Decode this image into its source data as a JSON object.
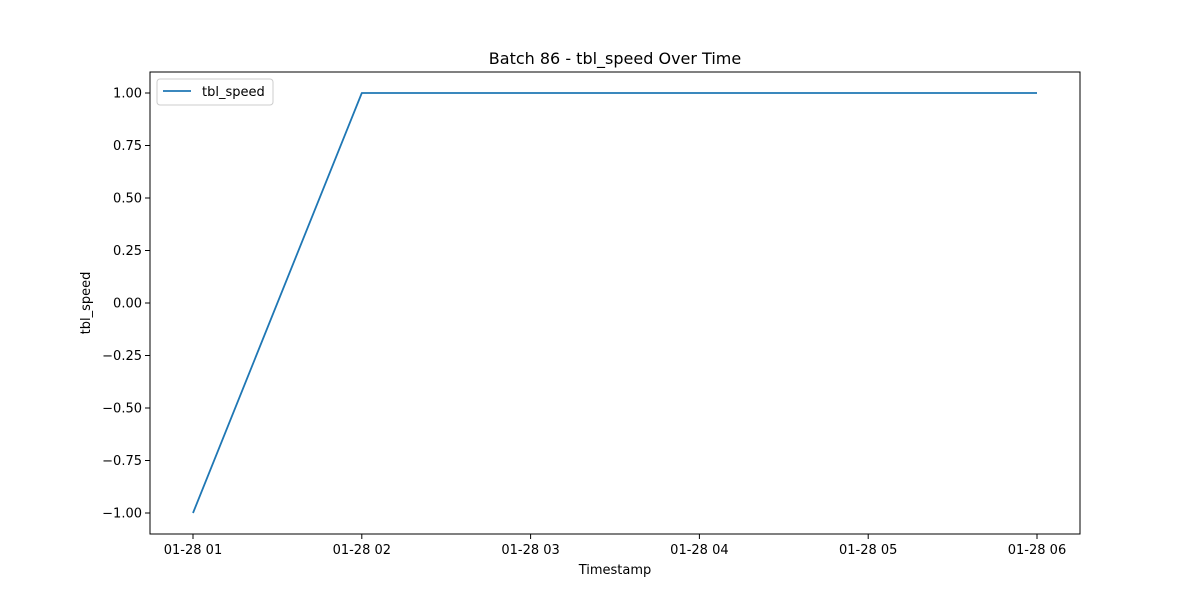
{
  "chart_data": {
    "type": "line",
    "title": "Batch 86 - tbl_speed Over Time",
    "xlabel": "Timestamp",
    "ylabel": "tbl_speed",
    "x": [
      "01-28 01",
      "01-28 02",
      "01-28 03",
      "01-28 04",
      "01-28 05",
      "01-28 06"
    ],
    "series": [
      {
        "name": "tbl_speed",
        "color": "#1f77b4",
        "values": [
          -1.0,
          1.0,
          1.0,
          1.0,
          1.0,
          1.0
        ]
      }
    ],
    "xticks": [
      "01-28 01",
      "01-28 02",
      "01-28 03",
      "01-28 04",
      "01-28 05",
      "01-28 06"
    ],
    "yticks": [
      "−1.00",
      "−0.75",
      "−0.50",
      "−0.25",
      "0.00",
      "0.25",
      "0.50",
      "0.75",
      "1.00"
    ],
    "ylim": [
      -1.1,
      1.1
    ],
    "legend": {
      "position": "top-left"
    },
    "grid": false
  }
}
